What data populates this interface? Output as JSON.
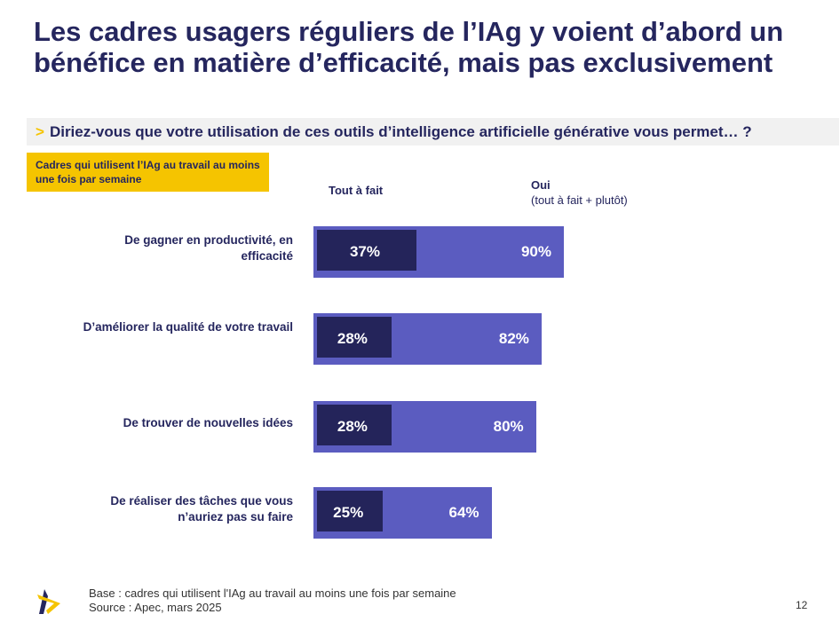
{
  "title": "Les cadres usagers réguliers de l’IAg y voient d’abord un bénéfice en matière d’efficacité, mais pas exclusivement",
  "question": {
    "marker": ">",
    "text": "Diriez-vous que votre utilisation de ces outils d’intelligence artificielle générative vous permet… ?"
  },
  "population": "Cadres qui utilisent l’IAg au travail au moins une fois par semaine",
  "footer": {
    "base": "Base : cadres qui utilisent l'IAg au travail au moins une fois par semaine",
    "source": "Source : Apec, mars 2025",
    "page": "12"
  },
  "colors": {
    "dark": "#24245a",
    "light": "#5b5cc0",
    "accent": "#f5c400"
  },
  "chart_data": {
    "type": "bar",
    "orientation": "horizontal",
    "categories": [
      "De gagner en productivité, en efficacité",
      "D’améliorer la qualité de votre travail",
      "De trouver de nouvelles idées",
      "De réaliser des tâches que vous n’auriez pas su faire"
    ],
    "series": [
      {
        "name": "Tout à fait",
        "values": [
          37,
          28,
          28,
          25
        ],
        "labels": [
          "37%",
          "28%",
          "28%",
          "25%"
        ]
      },
      {
        "name": "Oui",
        "sub": "(tout à fait + plutôt)",
        "values": [
          90,
          82,
          80,
          64
        ],
        "labels": [
          "90%",
          "82%",
          "80%",
          "64%"
        ]
      }
    ],
    "unit": "%",
    "xlim": [
      0,
      100
    ],
    "grid": false
  }
}
